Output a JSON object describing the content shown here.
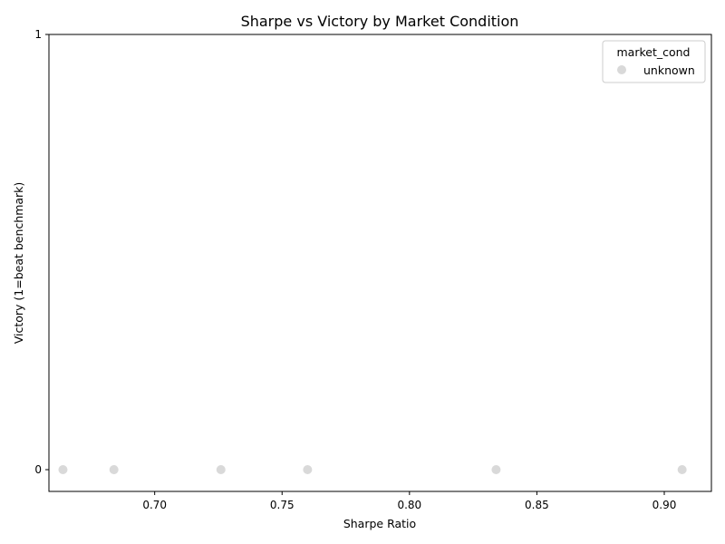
{
  "chart_data": {
    "type": "scatter",
    "title": "Sharpe vs Victory by Market Condition",
    "xlabel": "Sharpe Ratio",
    "ylabel": "Victory (1=beat benchmark)",
    "xlim": [
      0.6585,
      0.9185
    ],
    "ylim": [
      -0.05,
      1.0
    ],
    "x_ticks": [
      0.7,
      0.75,
      0.8,
      0.85,
      0.9
    ],
    "x_tick_labels": [
      "0.70",
      "0.75",
      "0.80",
      "0.85",
      "0.90"
    ],
    "y_ticks": [
      0,
      1
    ],
    "y_tick_labels": [
      "0",
      "1"
    ],
    "grid": false,
    "legend": {
      "title": "market_cond",
      "placement": "top-right"
    },
    "series": [
      {
        "name": "unknown",
        "color": "#d9d9d9",
        "points": [
          {
            "x": 0.664,
            "y": 0
          },
          {
            "x": 0.684,
            "y": 0
          },
          {
            "x": 0.726,
            "y": 0
          },
          {
            "x": 0.76,
            "y": 0
          },
          {
            "x": 0.834,
            "y": 0
          },
          {
            "x": 0.907,
            "y": 0
          }
        ]
      }
    ]
  }
}
